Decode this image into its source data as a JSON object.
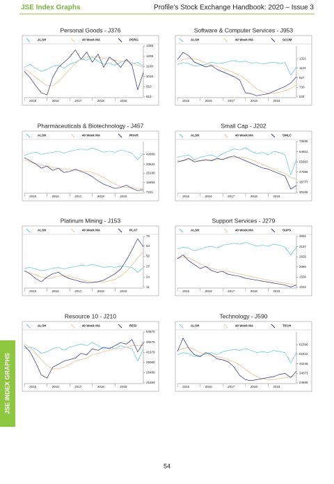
{
  "header": {
    "left": "JSE Index Graphs",
    "right": "Profile’s Stock Exchange Handbook: 2020 – Issue 3"
  },
  "side_tab": "JSE INDEX GRAPHS",
  "page_number": "54",
  "chart_data": [
    {
      "type": "line",
      "title": "Personal Goods - J376",
      "categories": [
        null,
        "2015",
        null,
        null,
        null,
        "2016",
        null,
        null,
        null,
        "2017",
        null,
        null,
        null,
        "2018",
        null,
        null,
        null,
        "2019",
        null,
        null,
        null,
        null
      ],
      "ylim": [
        810,
        1309
      ],
      "yticks": [
        1309,
        1209,
        1109,
        1010,
        910,
        810
      ],
      "series": [
        {
          "name": "ALSH",
          "color": "#5bc8d8",
          "values": [
            1100,
            1130,
            1090,
            1060,
            1080,
            1110,
            1120,
            1090,
            1130,
            1150,
            1180,
            1170,
            1200,
            1160,
            1130,
            1140,
            1120,
            1150,
            1170,
            1130,
            1150,
            1110
          ]
        },
        {
          "name": "40 Week MA",
          "color": "#e8c8a0",
          "values": [
            1080,
            1050,
            1000,
            960,
            920,
            920,
            960,
            1020,
            1080,
            1140,
            1180,
            1200,
            1210,
            1200,
            1190,
            1180,
            1170,
            1160,
            1160,
            1150,
            1120,
            1100
          ]
        },
        {
          "name": "PERG",
          "color": "#2a2e6e",
          "values": [
            1060,
            1000,
            920,
            850,
            830,
            1000,
            1100,
            1150,
            1200,
            1270,
            1180,
            1250,
            1150,
            1230,
            1100,
            1200,
            1160,
            1100,
            1180,
            1120,
            880,
            1050
          ]
        }
      ]
    },
    {
      "type": "line",
      "title": "Software & Computer Services - J953",
      "categories": [
        null,
        "2015",
        null,
        null,
        null,
        "2016",
        null,
        null,
        null,
        "2017",
        null,
        null,
        null,
        "2018",
        null,
        null,
        null,
        "2019",
        null,
        null,
        null,
        null
      ],
      "ylim": [
        534,
        1580
      ],
      "yticks": [
        1321,
        1124,
        927,
        730,
        534
      ],
      "series": [
        {
          "name": "ALSH",
          "color": "#5bc8d8",
          "values": [
            1200,
            1240,
            1220,
            1170,
            1180,
            1200,
            1250,
            1220,
            1230,
            1260,
            1280,
            1250,
            1270,
            1230,
            1240,
            1210,
            1230,
            1250,
            1220,
            1240,
            980,
            1150
          ]
        },
        {
          "name": "40 Week MA",
          "color": "#e8c8a0",
          "values": [
            1250,
            1300,
            1330,
            1320,
            1280,
            1230,
            1190,
            1160,
            1120,
            1080,
            1030,
            980,
            900,
            800,
            700,
            640,
            610,
            610,
            630,
            660,
            710,
            780
          ]
        },
        {
          "name": "SCOM",
          "color": "#2a2e6e",
          "values": [
            1300,
            1450,
            1380,
            1250,
            1200,
            1150,
            1180,
            1100,
            1050,
            1000,
            950,
            880,
            620,
            600,
            560,
            580,
            600,
            650,
            700,
            750,
            820,
            950
          ]
        }
      ]
    },
    {
      "type": "line",
      "title": "Pharmaceuticals & Biotechnology - J457",
      "categories": [
        null,
        "2015",
        null,
        null,
        null,
        "2016",
        null,
        null,
        null,
        "2017",
        null,
        null,
        null,
        "2018",
        null,
        null,
        null,
        "2019",
        null,
        null,
        null,
        null
      ],
      "ylim": [
        7221,
        55000
      ],
      "yticks": [
        42889,
        33622,
        25188,
        16654,
        7221
      ],
      "series": [
        {
          "name": "ALSH",
          "color": "#5bc8d8",
          "values": [
            42000,
            44000,
            45000,
            43000,
            44000,
            45000,
            46000,
            44000,
            46000,
            47000,
            48000,
            47000,
            49000,
            47000,
            45000,
            46000,
            45000,
            47000,
            46000,
            44000,
            38000,
            44000
          ]
        },
        {
          "name": "40 Week MA",
          "color": "#e8c8a0",
          "values": [
            38000,
            36000,
            34000,
            33000,
            32000,
            31000,
            30000,
            29000,
            29000,
            28000,
            28000,
            27000,
            26000,
            24000,
            21000,
            18000,
            15000,
            13000,
            12000,
            12000,
            11000,
            11000
          ]
        },
        {
          "name": "PHAR",
          "color": "#2a2e6e",
          "values": [
            40000,
            37000,
            34000,
            30000,
            32000,
            28000,
            30000,
            26000,
            27000,
            29000,
            27000,
            25000,
            22000,
            18000,
            15000,
            13000,
            11000,
            12000,
            14000,
            11000,
            9000,
            10000
          ]
        }
      ]
    },
    {
      "type": "line",
      "title": "Small Cap - J202",
      "categories": [
        null,
        "2015",
        null,
        null,
        null,
        "2016",
        null,
        null,
        null,
        "2017",
        null,
        null,
        null,
        "2018",
        null,
        null,
        null,
        "2019",
        null,
        null,
        null,
        null
      ],
      "ylim": [
        30169,
        73206
      ],
      "yticks": [
        73206,
        64601,
        55993,
        47386,
        38777,
        30169
      ],
      "series": [
        {
          "name": "ALSH",
          "color": "#5bc8d8",
          "values": [
            60000,
            61000,
            62000,
            58000,
            60000,
            61000,
            62000,
            60000,
            63000,
            65000,
            67000,
            66000,
            68000,
            65000,
            63000,
            64000,
            62000,
            65000,
            64000,
            62000,
            45000,
            58000
          ]
        },
        {
          "name": "40 Week MA",
          "color": "#e8c8a0",
          "values": [
            57000,
            57500,
            58000,
            57500,
            57000,
            57000,
            57500,
            58000,
            58500,
            59000,
            59500,
            60000,
            59500,
            58000,
            56000,
            54000,
            52000,
            50000,
            48000,
            46000,
            43000,
            41000
          ]
        },
        {
          "name": "SMLC",
          "color": "#2a2e6e",
          "values": [
            56000,
            57000,
            59000,
            56000,
            57000,
            58000,
            57000,
            59000,
            58000,
            60000,
            61000,
            59000,
            57000,
            55000,
            53000,
            51000,
            50000,
            48000,
            46000,
            44000,
            33000,
            36000
          ]
        }
      ]
    },
    {
      "type": "line",
      "title": "Platinum Mining - J153",
      "categories": [
        null,
        "2015",
        null,
        null,
        null,
        "2016",
        null,
        null,
        null,
        "2017",
        null,
        null,
        null,
        "2018",
        null,
        null,
        null,
        "2019",
        null,
        null,
        null,
        null
      ],
      "ylim": [
        11,
        75
      ],
      "yticks": [
        75,
        63,
        50,
        37,
        24,
        11
      ],
      "series": [
        {
          "name": "ALSH",
          "color": "#5bc8d8",
          "values": [
            35,
            36,
            34,
            32,
            33,
            35,
            36,
            34,
            36,
            37,
            39,
            38,
            40,
            38,
            36,
            37,
            36,
            38,
            37,
            36,
            30,
            36
          ]
        },
        {
          "name": "40 Week MA",
          "color": "#e8c8a0",
          "values": [
            31,
            29,
            27,
            24,
            22,
            23,
            25,
            26,
            25,
            23,
            21,
            19,
            18,
            18,
            18,
            19,
            21,
            25,
            31,
            39,
            48,
            56
          ]
        },
        {
          "name": "PLAT",
          "color": "#2a2e6e",
          "values": [
            32,
            28,
            22,
            18,
            24,
            28,
            30,
            25,
            22,
            20,
            18,
            17,
            17,
            18,
            20,
            24,
            28,
            34,
            45,
            58,
            72,
            62
          ]
        }
      ]
    },
    {
      "type": "line",
      "title": "Support Services - J279",
      "categories": [
        null,
        "2015",
        null,
        null,
        null,
        "2016",
        null,
        null,
        null,
        "2017",
        null,
        null,
        null,
        "2018",
        null,
        null,
        null,
        "2019",
        null,
        null,
        null,
        null
      ],
      "ylim": [
        1032,
        3651
      ],
      "yticks": [
        3651,
        3127,
        2603,
        2080,
        1556,
        1032
      ],
      "series": [
        {
          "name": "ALSH",
          "color": "#5bc8d8",
          "values": [
            3000,
            3100,
            3050,
            2900,
            3000,
            3100,
            3150,
            3050,
            3200,
            3250,
            3300,
            3250,
            3350,
            3250,
            3150,
            3200,
            3150,
            3250,
            3200,
            3100,
            2700,
            3100
          ]
        },
        {
          "name": "40 Week MA",
          "color": "#e8c8a0",
          "values": [
            2600,
            2600,
            2550,
            2400,
            2250,
            2100,
            2000,
            1950,
            1900,
            1850,
            1780,
            1720,
            1650,
            1580,
            1520,
            1460,
            1400,
            1350,
            1300,
            1250,
            1200,
            1160
          ]
        },
        {
          "name": "SUPS",
          "color": "#2a2e6e",
          "values": [
            2500,
            2700,
            2400,
            2200,
            2000,
            2100,
            1900,
            1800,
            1850,
            1700,
            1650,
            1600,
            1500,
            1450,
            1400,
            1350,
            1300,
            1250,
            1200,
            1150,
            1050,
            1150
          ]
        }
      ]
    },
    {
      "type": "line",
      "title": "Resource 10 - J210",
      "categories": [
        null,
        "2015",
        null,
        null,
        null,
        "2016",
        null,
        null,
        null,
        "2017",
        null,
        null,
        null,
        "2018",
        null,
        null,
        null,
        "2019",
        null,
        null,
        null,
        null
      ],
      "ylim": [
        21894,
        54870
      ],
      "yticks": [
        54870,
        48275,
        41679,
        35084,
        28489,
        21894
      ],
      "series": [
        {
          "name": "ALSH",
          "color": "#5bc8d8",
          "values": [
            44000,
            45000,
            44000,
            41000,
            42000,
            44000,
            45000,
            43000,
            45000,
            46000,
            47000,
            46000,
            48000,
            46000,
            44000,
            45000,
            44000,
            46000,
            45000,
            44000,
            36000,
            44000
          ]
        },
        {
          "name": "40 Week MA",
          "color": "#e8c8a0",
          "values": [
            47000,
            45000,
            41000,
            37000,
            33000,
            31000,
            31000,
            32000,
            34000,
            36000,
            37000,
            38000,
            40000,
            41000,
            42000,
            43000,
            44000,
            44000,
            45000,
            46000,
            46000,
            46000
          ]
        },
        {
          "name": "RESI",
          "color": "#2a2e6e",
          "values": [
            46000,
            42000,
            35000,
            27000,
            25000,
            32000,
            34000,
            36000,
            37000,
            38000,
            41000,
            40000,
            44000,
            43000,
            45000,
            44000,
            46000,
            48000,
            47000,
            50000,
            42000,
            48000
          ]
        }
      ]
    },
    {
      "type": "line",
      "title": "Technology - J590",
      "categories": [
        null,
        "2015",
        null,
        null,
        null,
        "2016",
        null,
        null,
        null,
        "2017",
        null,
        null,
        null,
        "2018",
        null,
        null,
        null,
        "2019",
        null,
        null,
        null,
        null
      ],
      "ylim": [
        24899,
        73800
      ],
      "yticks": [
        61596,
        52422,
        43248,
        34073,
        24899
      ],
      "series": [
        {
          "name": "ALSH",
          "color": "#5bc8d8",
          "values": [
            52000,
            54000,
            53000,
            50000,
            51000,
            53000,
            54000,
            52000,
            55000,
            56000,
            57000,
            56000,
            58000,
            56000,
            54000,
            55000,
            54000,
            56000,
            55000,
            54000,
            44000,
            54000
          ]
        },
        {
          "name": "40 Week MA",
          "color": "#e8c8a0",
          "values": [
            56000,
            58000,
            59000,
            57000,
            54000,
            52000,
            51000,
            50000,
            49000,
            47000,
            45000,
            42000,
            38000,
            34000,
            31000,
            29000,
            28000,
            28000,
            29000,
            30000,
            31000,
            32000
          ]
        },
        {
          "name": "TECH",
          "color": "#2a2e6e",
          "values": [
            55000,
            68000,
            58000,
            52000,
            50000,
            54000,
            52000,
            48000,
            47000,
            45000,
            40000,
            32000,
            28000,
            27000,
            28000,
            29000,
            30000,
            31000,
            33000,
            34000,
            30000,
            36000
          ]
        }
      ]
    }
  ]
}
